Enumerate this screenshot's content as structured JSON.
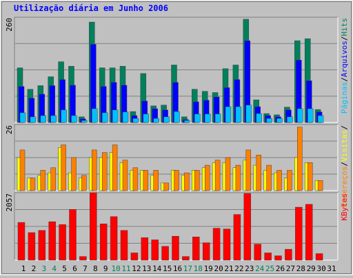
{
  "chart_data": [
    {
      "type": "bar",
      "title": "Utilização diária em Junho 2006",
      "legend_separator": "/",
      "ylim": [
        0,
        260
      ],
      "yticks": [
        260
      ],
      "series": [
        {
          "name": "Hits",
          "color": "#00805c",
          "values": [
            135,
            82,
            91,
            113,
            150,
            139,
            14,
            248,
            135,
            135,
            139,
            27,
            121,
            41,
            43,
            142,
            14,
            82,
            77,
            74,
            133,
            142,
            255,
            56,
            22,
            19,
            38,
            202,
            207,
            32,
            0
          ]
        },
        {
          "name": "Arquivos",
          "color": "#0000ff",
          "values": [
            89,
            60,
            70,
            91,
            106,
            92,
            9,
            193,
            89,
            99,
            92,
            17,
            53,
            34,
            31,
            99,
            7,
            51,
            55,
            63,
            86,
            106,
            202,
            39,
            17,
            14,
            31,
            154,
            103,
            26,
            0
          ]
        },
        {
          "name": "Páginas",
          "color": "#00c0ff",
          "values": [
            24,
            14,
            17,
            17,
            31,
            17,
            5,
            34,
            24,
            31,
            26,
            10,
            21,
            10,
            14,
            27,
            5,
            21,
            21,
            21,
            39,
            39,
            43,
            22,
            10,
            10,
            14,
            34,
            34,
            17,
            0
          ]
        }
      ]
    },
    {
      "type": "bar",
      "legend_separator": "/",
      "ylim": [
        0,
        26
      ],
      "yticks": [
        26
      ],
      "series": [
        {
          "name": "Visitas",
          "color": "#ffff00",
          "values": [
            13,
            5,
            6,
            7,
            17,
            7,
            5,
            13,
            13,
            15,
            11,
            8,
            8,
            6,
            3,
            8,
            6,
            8,
            9,
            11,
            11,
            9,
            12,
            10,
            8,
            7,
            5,
            13,
            11,
            4,
            0
          ]
        },
        {
          "name": "Endereços",
          "color": "#ff8000",
          "values": [
            16,
            5,
            8,
            9,
            18,
            13,
            6,
            16,
            15,
            18,
            12,
            9,
            8,
            8,
            3,
            8,
            7,
            8,
            10,
            12,
            13,
            10,
            16,
            14,
            10,
            8,
            8,
            25,
            11,
            4,
            0
          ]
        }
      ]
    },
    {
      "type": "bar",
      "ylim": [
        0,
        2057
      ],
      "yticks": [
        2057
      ],
      "categories": [
        "1",
        "2",
        "3",
        "4",
        "5",
        "6",
        "7",
        "8",
        "9",
        "10",
        "11",
        "12",
        "13",
        "14",
        "15",
        "16",
        "17",
        "18",
        "19",
        "20",
        "21",
        "22",
        "23",
        "24",
        "25",
        "26",
        "27",
        "28",
        "29",
        "30",
        "31"
      ],
      "category_colors": [
        "#000000",
        "#000000",
        "#00805c",
        "#00805c",
        "#000000",
        "#000000",
        "#000000",
        "#000000",
        "#000000",
        "#00805c",
        "#00805c",
        "#000000",
        "#000000",
        "#000000",
        "#000000",
        "#000000",
        "#00805c",
        "#00805c",
        "#000000",
        "#000000",
        "#000000",
        "#000000",
        "#000000",
        "#00805c",
        "#00805c",
        "#000000",
        "#000000",
        "#000000",
        "#000000",
        "#000000",
        "#000000"
      ],
      "series": [
        {
          "name": "KBytes",
          "color": "#ff0000",
          "values": [
            1150,
            840,
            907,
            1172,
            1084,
            1548,
            111,
            2057,
            1106,
            1327,
            907,
            221,
            686,
            619,
            420,
            730,
            111,
            708,
            531,
            973,
            951,
            1393,
            2035,
            487,
            221,
            133,
            332,
            1615,
            1703,
            199,
            0
          ]
        }
      ]
    }
  ]
}
